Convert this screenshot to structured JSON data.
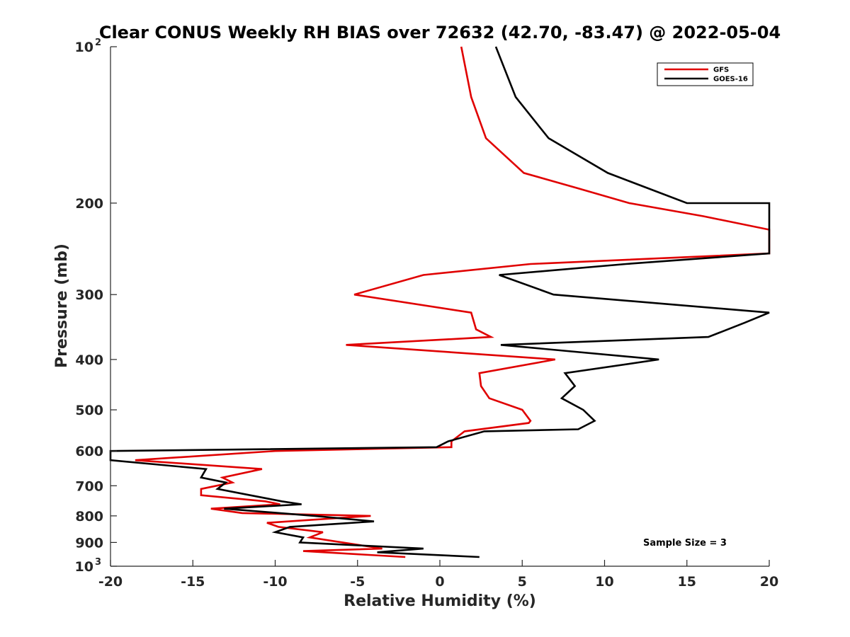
{
  "chart_data": {
    "type": "line",
    "title": "Clear CONUS Weekly RH BIAS over 72632 (42.70, -83.47) @ 2022-05-04",
    "xlabel": "Relative Humidity (%)",
    "ylabel": "Pressure (mb)",
    "xlim": [
      -20,
      20
    ],
    "ylim": [
      100,
      1000
    ],
    "y_scale": "log",
    "y_reversed": true,
    "x_ticks": [
      "-20",
      "-15",
      "-10",
      "-5",
      "0",
      "5",
      "10",
      "15",
      "20"
    ],
    "y_ticks": [
      {
        "value": 100,
        "base": "10",
        "exp": "2"
      },
      {
        "value": 200,
        "label": "200"
      },
      {
        "value": 300,
        "label": "300"
      },
      {
        "value": 400,
        "label": "400"
      },
      {
        "value": 500,
        "label": "500"
      },
      {
        "value": 600,
        "label": "600"
      },
      {
        "value": 700,
        "label": "700"
      },
      {
        "value": 800,
        "label": "800"
      },
      {
        "value": 900,
        "label": "900"
      },
      {
        "value": 1000,
        "base": "10",
        "exp": "3"
      }
    ],
    "legend_position": "top-right",
    "annotation": "Sample Size = 3",
    "series": [
      {
        "name": "GFS",
        "color": "#e00000",
        "points": [
          [
            1.3,
            100
          ],
          [
            1.9,
            125
          ],
          [
            2.8,
            150
          ],
          [
            5.1,
            175
          ],
          [
            8.3,
            187
          ],
          [
            11.5,
            200
          ],
          [
            16.0,
            212
          ],
          [
            20,
            225
          ],
          [
            20,
            250
          ],
          [
            5.5,
            262
          ],
          [
            -1.0,
            275
          ],
          [
            -5.2,
            300
          ],
          [
            1.9,
            325
          ],
          [
            2.2,
            350
          ],
          [
            3.1,
            362
          ],
          [
            -5.7,
            375
          ],
          [
            7.0,
            400
          ],
          [
            2.4,
            425
          ],
          [
            2.5,
            450
          ],
          [
            3.0,
            475
          ],
          [
            5.0,
            500
          ],
          [
            5.5,
            525
          ],
          [
            5.4,
            530
          ],
          [
            1.5,
            550
          ],
          [
            0.7,
            575
          ],
          [
            0.7,
            590
          ],
          [
            -10.0,
            600
          ],
          [
            -18.5,
            625
          ],
          [
            -10.8,
            650
          ],
          [
            -13.2,
            675
          ],
          [
            -12.6,
            690
          ],
          [
            -14.5,
            710
          ],
          [
            -14.5,
            730
          ],
          [
            -10.6,
            750
          ],
          [
            -9.7,
            760
          ],
          [
            -13.9,
            775
          ],
          [
            -12.0,
            790
          ],
          [
            -4.2,
            800
          ],
          [
            -10.5,
            825
          ],
          [
            -9.8,
            840
          ],
          [
            -7.1,
            860
          ],
          [
            -7.9,
            880
          ],
          [
            -3.5,
            925
          ],
          [
            -8.3,
            935
          ],
          [
            -2.1,
            960
          ]
        ]
      },
      {
        "name": "GOES-16",
        "color": "#000000",
        "points": [
          [
            3.4,
            100
          ],
          [
            4.6,
            125
          ],
          [
            6.6,
            150
          ],
          [
            10.2,
            175
          ],
          [
            15.0,
            200
          ],
          [
            20,
            200
          ],
          [
            20,
            250
          ],
          [
            11.3,
            262
          ],
          [
            3.6,
            275
          ],
          [
            6.9,
            300
          ],
          [
            20,
            325
          ],
          [
            18.5,
            340
          ],
          [
            16.3,
            362
          ],
          [
            3.7,
            375
          ],
          [
            13.3,
            400
          ],
          [
            7.6,
            425
          ],
          [
            8.2,
            450
          ],
          [
            7.4,
            475
          ],
          [
            8.7,
            500
          ],
          [
            9.4,
            525
          ],
          [
            8.4,
            545
          ],
          [
            2.7,
            550
          ],
          [
            0.5,
            575
          ],
          [
            -0.2,
            590
          ],
          [
            -20,
            600
          ],
          [
            -20,
            625
          ],
          [
            -14.2,
            650
          ],
          [
            -14.5,
            675
          ],
          [
            -13.0,
            690
          ],
          [
            -13.5,
            710
          ],
          [
            -9.6,
            750
          ],
          [
            -8.4,
            760
          ],
          [
            -13.1,
            775
          ],
          [
            -7.6,
            800
          ],
          [
            -4.0,
            820
          ],
          [
            -9.1,
            840
          ],
          [
            -10.0,
            860
          ],
          [
            -8.3,
            880
          ],
          [
            -8.5,
            900
          ],
          [
            -1.0,
            925
          ],
          [
            -3.8,
            940
          ],
          [
            2.4,
            960
          ]
        ]
      }
    ]
  }
}
